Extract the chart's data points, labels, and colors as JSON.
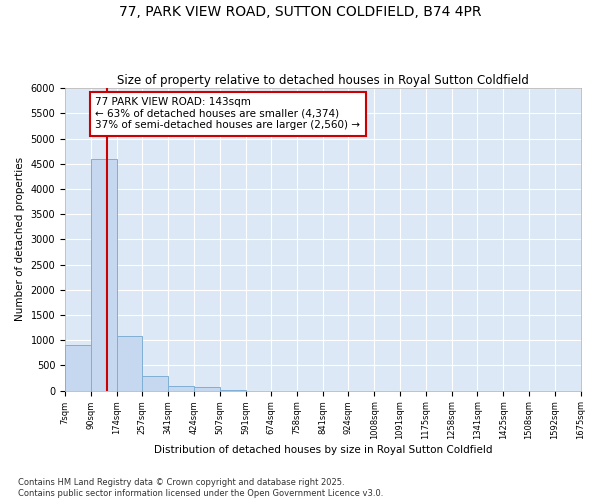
{
  "title": "77, PARK VIEW ROAD, SUTTON COLDFIELD, B74 4PR",
  "subtitle": "Size of property relative to detached houses in Royal Sutton Coldfield",
  "xlabel": "Distribution of detached houses by size in Royal Sutton Coldfield",
  "ylabel": "Number of detached properties",
  "property_size": 143,
  "annotation_line1": "77 PARK VIEW ROAD: 143sqm",
  "annotation_line2": "← 63% of detached houses are smaller (4,374)",
  "annotation_line3": "37% of semi-detached houses are larger (2,560) →",
  "vline_color": "#cc0000",
  "bar_color": "#c5d8f0",
  "bar_edge_color": "#7fafd4",
  "annotation_box_edge": "#cc0000",
  "background_color": "#dce8f5",
  "footer": "Contains HM Land Registry data © Crown copyright and database right 2025.\nContains public sector information licensed under the Open Government Licence v3.0.",
  "bin_edges": [
    7,
    90,
    174,
    257,
    341,
    424,
    507,
    591,
    674,
    758,
    841,
    924,
    1008,
    1091,
    1175,
    1258,
    1341,
    1425,
    1508,
    1592,
    1675
  ],
  "bin_values": [
    900,
    4600,
    1075,
    290,
    100,
    65,
    10,
    0,
    0,
    0,
    0,
    0,
    0,
    0,
    0,
    0,
    0,
    0,
    0,
    0
  ],
  "ylim": [
    0,
    6000
  ],
  "yticks": [
    0,
    500,
    1000,
    1500,
    2000,
    2500,
    3000,
    3500,
    4000,
    4500,
    5000,
    5500,
    6000
  ]
}
